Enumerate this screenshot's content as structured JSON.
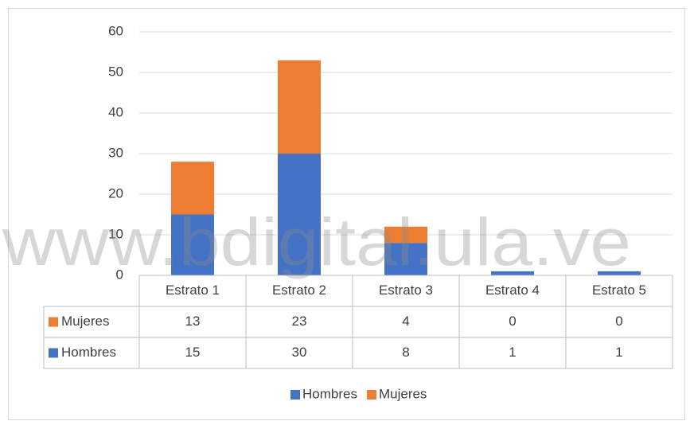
{
  "chart_data": {
    "type": "stacked_bar",
    "categories": [
      "Estrato 1",
      "Estrato 2",
      "Estrato 3",
      "Estrato 4",
      "Estrato 5"
    ],
    "series": [
      {
        "name": "Hombres",
        "color": "#4472c4",
        "values": [
          15,
          30,
          8,
          1,
          1
        ]
      },
      {
        "name": "Mujeres",
        "color": "#ed7d31",
        "values": [
          13,
          23,
          4,
          0,
          0
        ]
      }
    ],
    "ylim": [
      0,
      60
    ],
    "yticks": [
      0,
      10,
      20,
      30,
      40,
      50,
      60
    ],
    "grid": true,
    "legend": "bottom",
    "watermark": "www.bdigital.ula.ve"
  }
}
